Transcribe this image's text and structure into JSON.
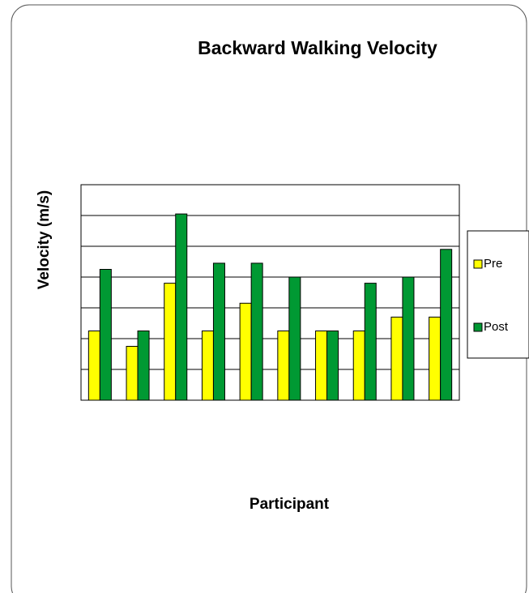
{
  "chart_data": {
    "type": "bar",
    "title": "Backward Walking Velocity",
    "x_label": "Participant",
    "y_label": "Velocity (m/s)",
    "categories": [
      null,
      null,
      null,
      null,
      null,
      null,
      null,
      null,
      null,
      null
    ],
    "series": [
      {
        "name": "Pre",
        "color": "#ffff00",
        "values": [
          2.25,
          1.75,
          3.8,
          2.25,
          3.15,
          2.25,
          2.25,
          2.25,
          2.7,
          2.7
        ]
      },
      {
        "name": "Post",
        "color": "#009933",
        "values": [
          4.25,
          2.25,
          6.05,
          4.45,
          4.45,
          4.0,
          2.25,
          3.8,
          4.0,
          4.9
        ]
      }
    ],
    "ylim": [
      0,
      7
    ],
    "yticks": [
      0,
      1,
      2,
      3,
      4,
      5,
      6,
      7
    ],
    "grid": true,
    "legend": "right"
  }
}
